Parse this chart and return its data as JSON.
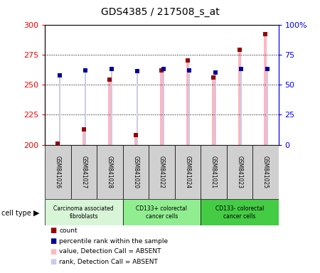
{
  "title": "GDS4385 / 217508_s_at",
  "samples": [
    "GSM841026",
    "GSM841027",
    "GSM841028",
    "GSM841020",
    "GSM841022",
    "GSM841024",
    "GSM841021",
    "GSM841023",
    "GSM841025"
  ],
  "groups": [
    {
      "label": "Carcinoma associated\nfibroblasts",
      "start": 0,
      "end": 3
    },
    {
      "label": "CD133+ colorectal\ncancer cells",
      "start": 3,
      "end": 6
    },
    {
      "label": "CD133- colorectal\ncancer cells",
      "start": 6,
      "end": 9
    }
  ],
  "value_bars": [
    201,
    213,
    254,
    208,
    262,
    270,
    256,
    279,
    292
  ],
  "rank_bars": [
    258,
    262,
    263,
    261,
    263,
    262,
    260,
    263,
    263
  ],
  "count_markers": [
    201,
    213,
    254,
    208,
    262,
    270,
    256,
    279,
    292
  ],
  "percentile_markers": [
    258,
    262,
    263,
    261,
    263,
    262,
    260,
    263,
    263
  ],
  "ylim_left": [
    200,
    300
  ],
  "ylim_right": [
    0,
    100
  ],
  "yticks_left": [
    200,
    225,
    250,
    275,
    300
  ],
  "yticks_right": [
    0,
    25,
    50,
    75,
    100
  ],
  "ytick_labels_left": [
    "200",
    "225",
    "250",
    "275",
    "300"
  ],
  "ytick_labels_right": [
    "0",
    "25",
    "50",
    "75",
    "100%"
  ],
  "bar_color_value": "#ffb6c1",
  "bar_color_rank": "#c8cce8",
  "marker_color_count": "#990000",
  "marker_color_percentile": "#000099",
  "group_bg_color_1": "#d8f5d8",
  "group_bg_color_2": "#90ee90",
  "group_bg_color_3": "#44cc44",
  "sample_box_color": "#d0d0d0"
}
